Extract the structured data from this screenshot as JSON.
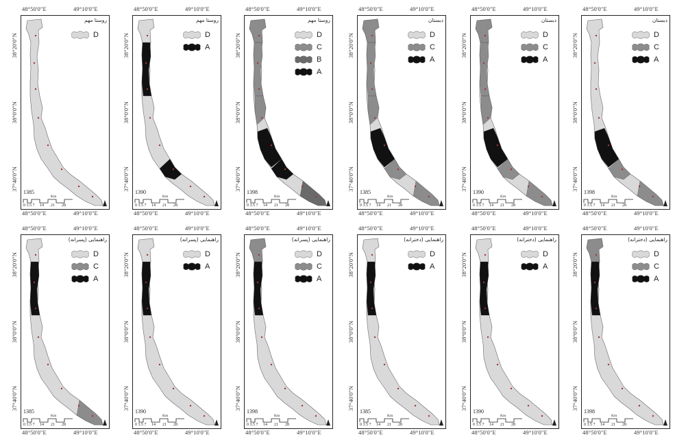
{
  "map_data": {
    "coords": {
      "lon_left": "48°50'0\"E",
      "lon_right": "49°10'0\"E",
      "lat_top": "38°20'0\"N",
      "lat_mid": "38°0'0\"N",
      "lat_bot": "37°40'0\"N"
    },
    "scale": {
      "unit": "Km",
      "ticks": [
        "0 3.5 7",
        "14",
        "21",
        "28"
      ]
    },
    "legend_levels": {
      "D": {
        "color": "#d9d9d9"
      },
      "C": {
        "color": "#8c8c8c"
      },
      "B": {
        "color": "#6a6a6a"
      },
      "A": {
        "color": "#111111"
      }
    },
    "panels": [
      {
        "title": "روستا مهم",
        "year": "1385",
        "legend": [
          "D"
        ]
      },
      {
        "title": "روستا مهم",
        "year": "1390",
        "legend": [
          "D",
          "A"
        ]
      },
      {
        "title": "روستا مهم",
        "year": "1398",
        "legend": [
          "D",
          "C",
          "B",
          "A"
        ]
      },
      {
        "title": "دبستان",
        "year": "1385",
        "legend": [
          "D",
          "C",
          "A"
        ]
      },
      {
        "title": "دبستان",
        "year": "1390",
        "legend": [
          "D",
          "C",
          "A"
        ]
      },
      {
        "title": "دبستان",
        "year": "1398",
        "legend": [
          "D",
          "C",
          "A"
        ]
      },
      {
        "title": "راهنمایی (پسرانه)",
        "year": "1385",
        "legend": [
          "D",
          "C",
          "A"
        ]
      },
      {
        "title": "راهنمایی (پسرانه)",
        "year": "1390",
        "legend": [
          "D",
          "A"
        ]
      },
      {
        "title": "راهنمایی (پسرانه)",
        "year": "1398",
        "legend": [
          "D",
          "C",
          "A"
        ]
      },
      {
        "title": "راهنمایی (دخترانه)",
        "year": "1385",
        "legend": [
          "D",
          "A"
        ]
      },
      {
        "title": "راهنمایی (دخترانه)",
        "year": "1390",
        "legend": [
          "D",
          "A"
        ]
      },
      {
        "title": "راهنمایی (دخترانه)",
        "year": "1398",
        "legend": [
          "D",
          "C",
          "A"
        ]
      }
    ]
  }
}
